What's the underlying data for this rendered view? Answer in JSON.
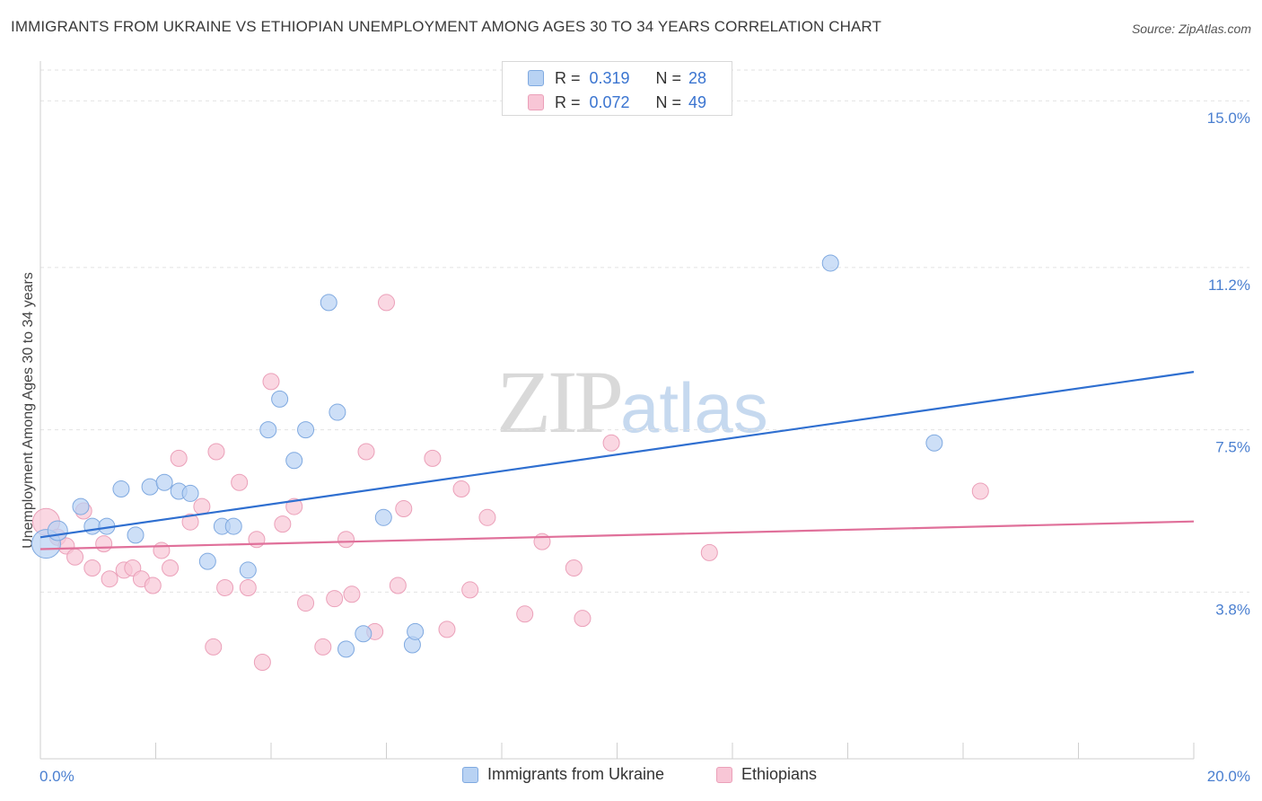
{
  "title": "IMMIGRANTS FROM UKRAINE VS ETHIOPIAN UNEMPLOYMENT AMONG AGES 30 TO 34 YEARS CORRELATION CHART",
  "source": "Source: ZipAtlas.com",
  "watermark": {
    "zip": "ZIP",
    "atlas": "atlas"
  },
  "legend": {
    "r_label": "R =",
    "n_label": "N =",
    "rows": [
      {
        "r": "0.319",
        "n": "28"
      },
      {
        "r": "0.072",
        "n": "49"
      }
    ]
  },
  "colors": {
    "ukraine_fill": "#b8d2f3",
    "ukraine_stroke": "#7fa9e0",
    "ukraine_line": "#2f6fd0",
    "ethiopian_fill": "#f8c6d6",
    "ethiopian_stroke": "#eba0b9",
    "ethiopian_line": "#e0709a",
    "tick_text": "#4a7fd0"
  },
  "chart_data": {
    "type": "scatter",
    "title": "IMMIGRANTS FROM UKRAINE VS ETHIOPIAN UNEMPLOYMENT AMONG AGES 30 TO 34 YEARS CORRELATION CHART",
    "xlabel": "",
    "ylabel": "Unemployment Among Ages 30 to 34 years",
    "xlim": [
      0,
      20
    ],
    "ylim": [
      0,
      15.7
    ],
    "x_tick_labels": [
      "0.0%",
      "20.0%"
    ],
    "y_ticks": [
      {
        "value": 3.8,
        "label": "3.8%"
      },
      {
        "value": 7.5,
        "label": "7.5%"
      },
      {
        "value": 11.2,
        "label": "11.2%"
      },
      {
        "value": 15.0,
        "label": "15.0%"
      }
    ],
    "grid": "horizontal dashed",
    "legend_position": "top-center",
    "series": [
      {
        "name": "Immigrants from Ukraine",
        "r": 0.319,
        "n": 28,
        "trend": {
          "x": [
            0,
            20
          ],
          "y": [
            5.05,
            8.82
          ]
        },
        "points": [
          [
            0.1,
            4.9,
            16
          ],
          [
            0.3,
            5.2,
            11
          ],
          [
            0.7,
            5.75,
            9
          ],
          [
            0.9,
            5.3,
            9
          ],
          [
            1.15,
            5.3,
            9
          ],
          [
            1.4,
            6.15,
            9
          ],
          [
            1.65,
            5.1,
            9
          ],
          [
            1.9,
            6.2,
            9
          ],
          [
            2.15,
            6.3,
            9
          ],
          [
            2.4,
            6.1,
            9
          ],
          [
            2.6,
            6.05,
            9
          ],
          [
            2.9,
            4.5,
            9
          ],
          [
            3.15,
            5.3,
            9
          ],
          [
            3.35,
            5.3,
            9
          ],
          [
            3.6,
            4.3,
            9
          ],
          [
            3.95,
            7.5,
            9
          ],
          [
            4.15,
            8.2,
            9
          ],
          [
            4.4,
            6.8,
            9
          ],
          [
            4.6,
            7.5,
            9
          ],
          [
            5.0,
            10.4,
            9
          ],
          [
            5.15,
            7.9,
            9
          ],
          [
            5.3,
            2.5,
            9
          ],
          [
            5.6,
            2.85,
            9
          ],
          [
            5.95,
            5.5,
            9
          ],
          [
            6.45,
            2.6,
            9
          ],
          [
            6.5,
            2.9,
            9
          ],
          [
            13.7,
            11.3,
            9
          ],
          [
            15.5,
            7.2,
            9
          ]
        ]
      },
      {
        "name": "Ethiopians",
        "r": 0.072,
        "n": 49,
        "trend": {
          "x": [
            0,
            20
          ],
          "y": [
            4.78,
            5.41
          ]
        },
        "points": [
          [
            0.1,
            5.4,
            15
          ],
          [
            0.3,
            5.05,
            9
          ],
          [
            0.45,
            4.85,
            9
          ],
          [
            0.6,
            4.6,
            9
          ],
          [
            0.75,
            5.65,
            9
          ],
          [
            0.9,
            4.35,
            9
          ],
          [
            1.1,
            4.9,
            9
          ],
          [
            1.2,
            4.1,
            9
          ],
          [
            1.45,
            4.3,
            9
          ],
          [
            1.6,
            4.35,
            9
          ],
          [
            1.75,
            4.1,
            9
          ],
          [
            1.95,
            3.95,
            9
          ],
          [
            2.1,
            4.75,
            9
          ],
          [
            2.25,
            4.35,
            9
          ],
          [
            2.4,
            6.85,
            9
          ],
          [
            2.6,
            5.4,
            9
          ],
          [
            2.8,
            5.75,
            9
          ],
          [
            3.0,
            2.55,
            9
          ],
          [
            3.05,
            7.0,
            9
          ],
          [
            3.2,
            3.9,
            9
          ],
          [
            3.45,
            6.3,
            9
          ],
          [
            3.6,
            3.9,
            9
          ],
          [
            3.75,
            5.0,
            9
          ],
          [
            3.85,
            2.2,
            9
          ],
          [
            4.0,
            8.6,
            9
          ],
          [
            4.2,
            5.35,
            9
          ],
          [
            4.4,
            5.75,
            9
          ],
          [
            4.6,
            3.55,
            9
          ],
          [
            4.9,
            2.55,
            9
          ],
          [
            5.1,
            3.65,
            9
          ],
          [
            5.3,
            5.0,
            9
          ],
          [
            5.4,
            3.75,
            9
          ],
          [
            5.65,
            7.0,
            9
          ],
          [
            5.8,
            2.9,
            9
          ],
          [
            6.0,
            10.4,
            9
          ],
          [
            6.2,
            3.95,
            9
          ],
          [
            6.3,
            5.7,
            9
          ],
          [
            6.8,
            6.85,
            9
          ],
          [
            7.05,
            2.95,
            9
          ],
          [
            7.3,
            6.15,
            9
          ],
          [
            7.45,
            3.85,
            9
          ],
          [
            7.75,
            5.5,
            9
          ],
          [
            8.4,
            3.3,
            9
          ],
          [
            8.7,
            4.95,
            9
          ],
          [
            9.25,
            4.35,
            9
          ],
          [
            9.4,
            3.2,
            9
          ],
          [
            9.9,
            7.2,
            9
          ],
          [
            11.6,
            4.7,
            9
          ],
          [
            16.3,
            6.1,
            9
          ]
        ]
      }
    ]
  }
}
